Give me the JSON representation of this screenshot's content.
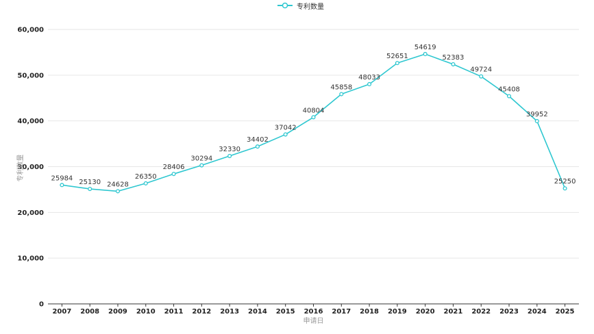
{
  "chart_data": {
    "type": "line",
    "title": "",
    "xlabel": "申请日",
    "ylabel": "专利数量",
    "categories": [
      "2007",
      "2008",
      "2009",
      "2010",
      "2011",
      "2012",
      "2013",
      "2014",
      "2015",
      "2016",
      "2017",
      "2018",
      "2019",
      "2020",
      "2021",
      "2022",
      "2023",
      "2024",
      "2025"
    ],
    "series": [
      {
        "name": "专利数量",
        "color": "#2ec7d0",
        "values": [
          25984,
          25130,
          24628,
          26350,
          28406,
          30294,
          32330,
          34402,
          37042,
          40804,
          45858,
          48033,
          52651,
          54619,
          52383,
          49724,
          45408,
          39952,
          25250
        ]
      }
    ],
    "ylim": [
      0,
      60000
    ],
    "yticks": [
      "0",
      "10,000",
      "20,000",
      "30,000",
      "40,000",
      "50,000",
      "60,000"
    ],
    "grid": true,
    "legend_position": "top-center"
  }
}
